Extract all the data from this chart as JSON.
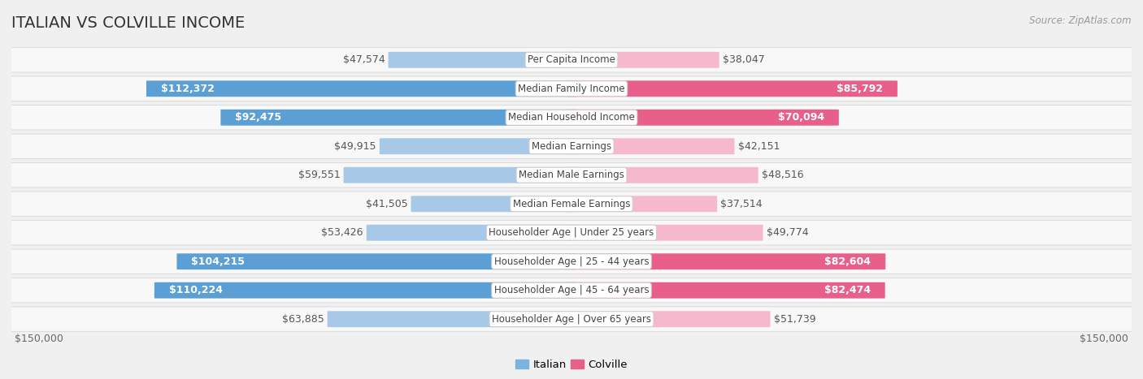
{
  "title": "ITALIAN VS COLVILLE INCOME",
  "source": "Source: ZipAtlas.com",
  "categories": [
    "Per Capita Income",
    "Median Family Income",
    "Median Household Income",
    "Median Earnings",
    "Median Male Earnings",
    "Median Female Earnings",
    "Householder Age | Under 25 years",
    "Householder Age | 25 - 44 years",
    "Householder Age | 45 - 64 years",
    "Householder Age | Over 65 years"
  ],
  "italian_values": [
    47574,
    112372,
    92475,
    49915,
    59551,
    41505,
    53426,
    104215,
    110224,
    63885
  ],
  "colville_values": [
    38047,
    85792,
    70094,
    42151,
    48516,
    37514,
    49774,
    82604,
    82474,
    51739
  ],
  "italian_labels": [
    "$47,574",
    "$112,372",
    "$92,475",
    "$49,915",
    "$59,551",
    "$41,505",
    "$53,426",
    "$104,215",
    "$110,224",
    "$63,885"
  ],
  "colville_labels": [
    "$38,047",
    "$85,792",
    "$70,094",
    "$42,151",
    "$48,516",
    "$37,514",
    "$49,774",
    "$82,604",
    "$82,474",
    "$51,739"
  ],
  "max_value": 150000,
  "italian_color_light": "#a8c8e8",
  "italian_color_dark": "#5b9fd4",
  "colville_color_light": "#f5b8cc",
  "colville_color_dark": "#e8608a",
  "background_color": "#f0f0f0",
  "row_bg_color": "#f8f8f8",
  "row_border_color": "#dddddd",
  "label_dark_threshold": 70000,
  "title_fontsize": 14,
  "label_fontsize": 9,
  "cat_fontsize": 8.5,
  "axis_label_fontsize": 9,
  "legend_italian_color": "#7ab3dc",
  "legend_colville_color": "#e8608a"
}
